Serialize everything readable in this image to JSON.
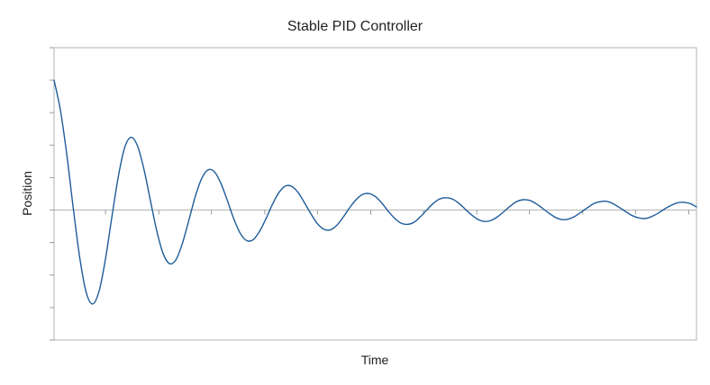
{
  "chart_data": {
    "type": "line",
    "title": "Stable PID Controller",
    "xlabel": "Time",
    "ylabel": "Position",
    "xlim": [
      0,
      100
    ],
    "ylim": [
      -4,
      5
    ],
    "grid": false,
    "legend": "none",
    "y_tick_values": [
      -4,
      -3,
      -2,
      -1,
      0,
      1,
      2,
      3,
      4,
      5
    ],
    "x_tick_values": [
      8,
      16.3,
      24.5,
      32.8,
      41,
      49.3,
      57.5,
      65.8,
      74,
      82.3,
      90.5,
      98.8
    ],
    "series": [
      {
        "name": "Position",
        "color": "#1f5c99",
        "x": [
          0,
          1,
          2,
          3,
          4,
          5,
          6,
          7,
          8,
          9,
          10,
          11,
          12,
          13,
          14,
          15,
          16,
          17,
          18,
          19,
          20,
          21,
          22,
          23,
          24,
          25,
          26,
          27,
          28,
          29,
          30,
          31,
          32,
          33,
          34,
          35,
          36,
          37,
          38,
          39,
          40,
          41,
          42,
          43,
          44,
          45,
          46,
          47,
          48,
          49,
          50,
          51,
          52,
          53,
          54,
          55,
          56,
          57,
          58,
          59,
          60,
          61,
          62,
          63,
          64,
          65,
          66,
          67,
          68,
          69,
          70,
          71,
          72,
          73,
          74,
          75,
          76,
          77,
          78,
          79,
          80,
          81,
          82,
          83,
          84,
          85,
          86,
          87,
          88,
          89,
          90,
          91,
          92,
          93,
          94,
          95,
          96,
          97,
          98,
          99,
          100
        ],
        "values": [
          4.0,
          3.06,
          1.68,
          0.04,
          -1.47,
          -2.53,
          -2.89,
          -2.5,
          -1.51,
          -0.21,
          1.03,
          1.93,
          2.24,
          1.97,
          1.25,
          0.29,
          -0.65,
          -1.35,
          -1.65,
          -1.52,
          -1.01,
          -0.3,
          0.43,
          0.98,
          1.24,
          1.17,
          0.81,
          0.28,
          -0.28,
          -0.72,
          -0.94,
          -0.91,
          -0.65,
          -0.26,
          0.18,
          0.54,
          0.74,
          0.73,
          0.54,
          0.22,
          -0.12,
          -0.42,
          -0.59,
          -0.61,
          -0.47,
          -0.22,
          0.07,
          0.32,
          0.48,
          0.51,
          0.42,
          0.22,
          -0.03,
          -0.25,
          -0.4,
          -0.44,
          -0.38,
          -0.21,
          0.0,
          0.2,
          0.34,
          0.38,
          0.34,
          0.21,
          0.03,
          -0.15,
          -0.29,
          -0.35,
          -0.32,
          -0.21,
          -0.05,
          0.12,
          0.26,
          0.32,
          0.3,
          0.2,
          0.06,
          -0.09,
          -0.22,
          -0.29,
          -0.28,
          -0.2,
          -0.07,
          0.07,
          0.2,
          0.26,
          0.27,
          0.2,
          0.08,
          -0.05,
          -0.17,
          -0.24,
          -0.26,
          -0.2,
          -0.1,
          0.03,
          0.14,
          0.22,
          0.24,
          0.2,
          0.1
        ]
      }
    ]
  }
}
